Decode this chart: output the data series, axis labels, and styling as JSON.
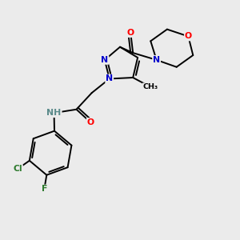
{
  "background_color": "#ebebeb",
  "bond_color": "#000000",
  "atom_colors": {
    "N": "#0000cc",
    "O": "#ff0000",
    "Cl": "#2d7a2d",
    "F": "#2d7a2d",
    "H": "#5a8a8a",
    "C": "#000000"
  },
  "figsize": [
    3.0,
    3.0
  ],
  "dpi": 100
}
